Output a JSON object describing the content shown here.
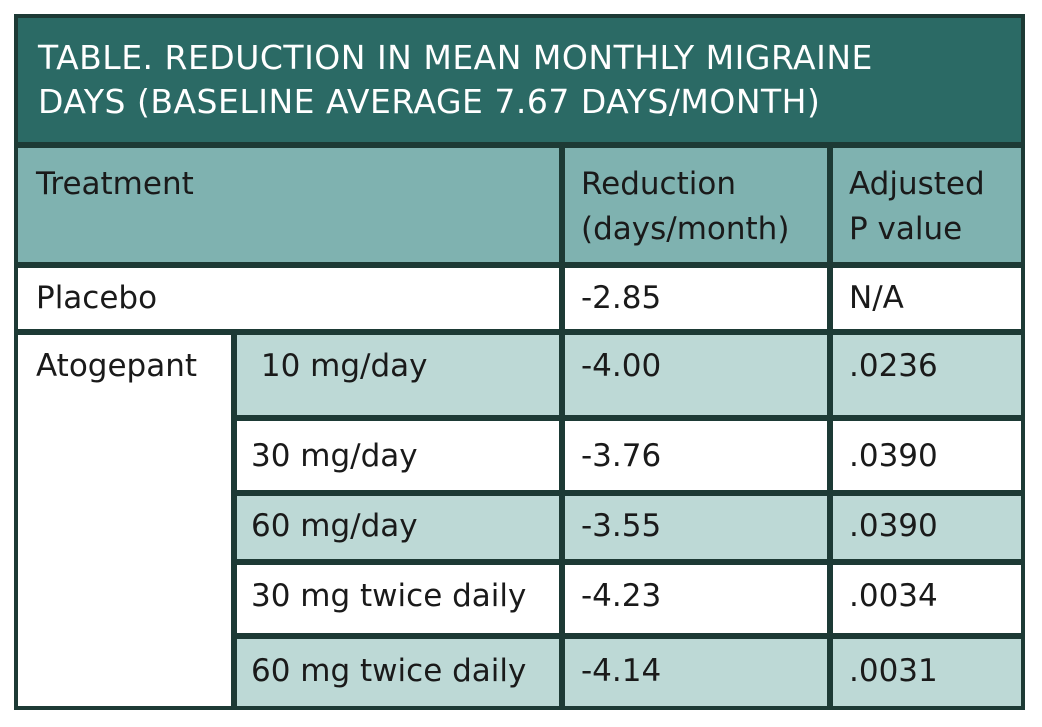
{
  "title": {
    "line1": "TABLE. REDUCTION IN MEAN MONTHLY MIGRAINE",
    "line2": "DAYS (BASELINE AVERAGE 7.67 DAYS/MONTH)"
  },
  "header": {
    "treatment": "Treatment",
    "reduction_line1": "Reduction",
    "reduction_line2": "(days/month)",
    "pvalue_line1": "Adjusted",
    "pvalue_line2": "P value"
  },
  "placebo": {
    "label": "Placebo",
    "reduction": "-2.85",
    "pvalue": "N/A"
  },
  "atogepant_label": "Atogepant",
  "doses": [
    {
      "dose": " 10 mg/day",
      "reduction": "-4.00",
      "pvalue": ".0236"
    },
    {
      "dose": "30 mg/day",
      "reduction": "-3.76",
      "pvalue": ".0390"
    },
    {
      "dose": "60 mg/day",
      "reduction": "-3.55",
      "pvalue": ".0390"
    },
    {
      "dose": "30 mg twice daily",
      "reduction": "-4.23",
      "pvalue": ".0034"
    },
    {
      "dose": "60 mg twice daily",
      "reduction": "-4.14",
      "pvalue": ".0031"
    }
  ]
}
